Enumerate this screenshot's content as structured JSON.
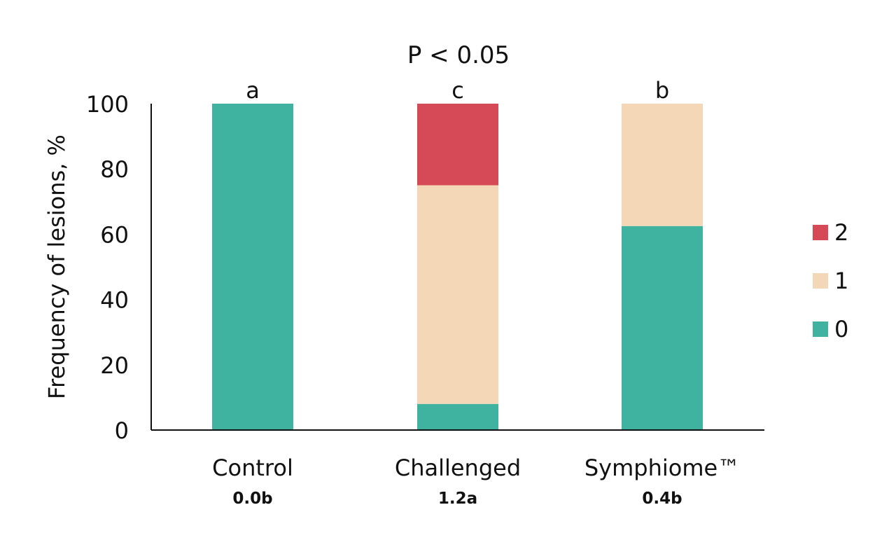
{
  "chart_data": {
    "type": "bar",
    "stacked": true,
    "title": "P < 0.05",
    "ylabel": "Frequency of lesions, %",
    "xlabel": "",
    "ylim": [
      0,
      100
    ],
    "yticks": [
      0,
      20,
      40,
      60,
      80,
      100
    ],
    "grid": false,
    "legend_position": "right",
    "categories": [
      "Control",
      "Challenged",
      "Symphiome™"
    ],
    "subcategory_labels": [
      "0.0b",
      "1.2a",
      "0.4b"
    ],
    "significance_letters": [
      "a",
      "c",
      "b"
    ],
    "series": [
      {
        "name": "0",
        "color": "#40b3a0",
        "values": [
          100,
          8,
          62.5
        ]
      },
      {
        "name": "1",
        "color": "#f4d7b7",
        "values": [
          0,
          67,
          37.5
        ]
      },
      {
        "name": "2",
        "color": "#d64957",
        "values": [
          0,
          25,
          0
        ]
      }
    ]
  }
}
